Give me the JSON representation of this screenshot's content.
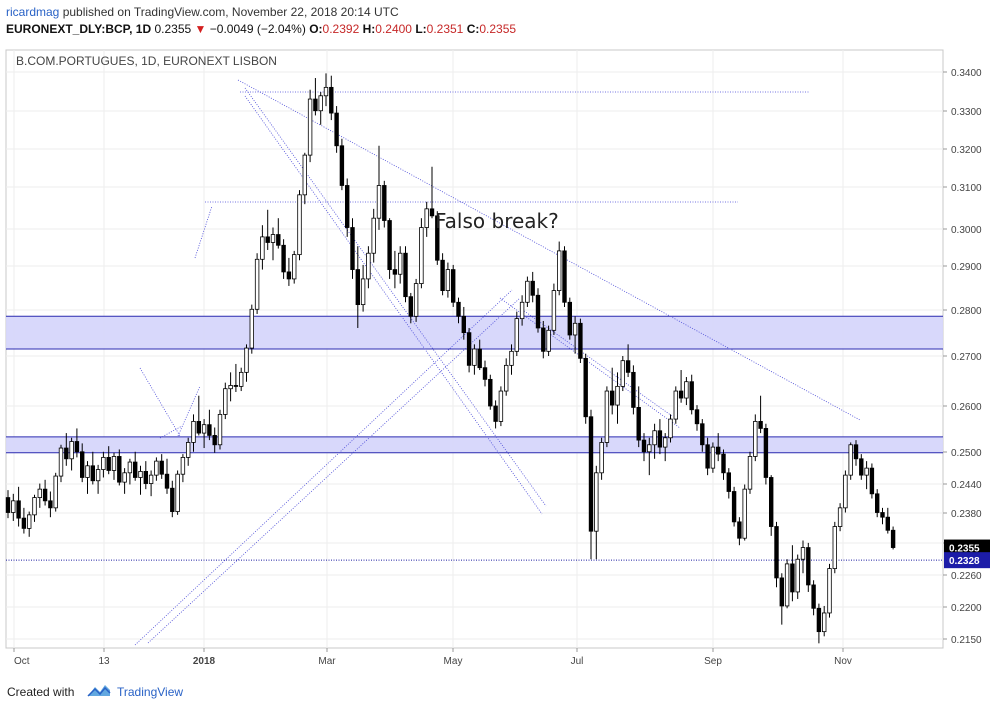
{
  "header": {
    "author": "ricardmag",
    "published_text": "published on TradingView.com, November 22, 2018 20:14 UTC",
    "symbol": "EURONEXT_DLY:BCP, 1D",
    "last_price": "0.2355",
    "change": "−0.0049 (−2.04%)",
    "o_label": "O:",
    "o_value": "0.2392",
    "h_label": "H:",
    "h_value": "0.2400",
    "l_label": "L:",
    "l_value": "0.2351",
    "c_label": "C:",
    "c_value": "0.2355",
    "down_color": "#d32020"
  },
  "footer": {
    "created_with": "Created with",
    "brand": "TradingView"
  },
  "chart_data": {
    "type": "candlestick",
    "title": "B.COM.PORTUGUES, 1D, EURONEXT LISBON",
    "annotation": "Falso break?",
    "xlabel": "",
    "ylabel": "",
    "ylim": [
      0.214,
      0.342
    ],
    "y_ticks": [
      "0.3400",
      "0.3300",
      "0.3200",
      "0.3100",
      "0.3000",
      "0.2900",
      "0.2800",
      "0.2700",
      "0.2600",
      "0.2500",
      "0.2440",
      "0.2380",
      "0.2320",
      "0.2260",
      "0.2200",
      "0.2150"
    ],
    "x_ticks": [
      "Oct",
      "13",
      "2018",
      "Mar",
      "May",
      "Jul",
      "Sep",
      "Nov"
    ],
    "last_price_label": "0.2355",
    "line_price_label": "0.2328",
    "horizontal_line": 0.2328,
    "zones": [
      {
        "low": 0.278,
        "high": 0.285
      },
      {
        "low": 0.2558,
        "high": 0.2592
      }
    ],
    "grid": true,
    "colors": {
      "candle": "#000000",
      "zone_fill": "#d4d4fb",
      "zone_border": "#2b2bb0",
      "trendline": "#4a4ad8",
      "price_line": "#1a1aa0",
      "label_bg": "#000000",
      "label_blue": "#1c1ca8"
    },
    "series": [
      {
        "values": [
          [
            0.2462,
            0.2478,
            0.2418,
            0.243
          ],
          [
            0.243,
            0.247,
            0.2412,
            0.2455
          ],
          [
            0.2455,
            0.2485,
            0.24,
            0.2418
          ],
          [
            0.2418,
            0.244,
            0.2385,
            0.2396
          ],
          [
            0.2396,
            0.2432,
            0.2378,
            0.2425
          ],
          [
            0.2425,
            0.2468,
            0.241,
            0.2462
          ],
          [
            0.2462,
            0.2492,
            0.244,
            0.248
          ],
          [
            0.248,
            0.25,
            0.2445,
            0.2455
          ],
          [
            0.2455,
            0.2475,
            0.242,
            0.244
          ],
          [
            0.244,
            0.2515,
            0.2432,
            0.2508
          ],
          [
            0.2508,
            0.2575,
            0.2495,
            0.2568
          ],
          [
            0.2568,
            0.26,
            0.253,
            0.2545
          ],
          [
            0.2545,
            0.259,
            0.252,
            0.2582
          ],
          [
            0.2582,
            0.261,
            0.2548,
            0.256
          ],
          [
            0.256,
            0.2578,
            0.2495,
            0.2505
          ],
          [
            0.2505,
            0.254,
            0.247,
            0.253
          ],
          [
            0.253,
            0.256,
            0.249,
            0.2498
          ],
          [
            0.2498,
            0.2532,
            0.247,
            0.2522
          ],
          [
            0.2522,
            0.256,
            0.2505,
            0.2548
          ],
          [
            0.2548,
            0.2572,
            0.2512,
            0.252
          ],
          [
            0.252,
            0.2558,
            0.25,
            0.255
          ],
          [
            0.255,
            0.2565,
            0.2488,
            0.2495
          ],
          [
            0.2495,
            0.2525,
            0.247,
            0.2515
          ],
          [
            0.2515,
            0.2545,
            0.249,
            0.2538
          ],
          [
            0.2538,
            0.256,
            0.2498,
            0.2505
          ],
          [
            0.2505,
            0.253,
            0.2468,
            0.2518
          ],
          [
            0.2518,
            0.254,
            0.248,
            0.2492
          ],
          [
            0.2492,
            0.252,
            0.2465,
            0.251
          ],
          [
            0.251,
            0.2548,
            0.2498,
            0.254
          ],
          [
            0.254,
            0.2555,
            0.2502,
            0.2512
          ],
          [
            0.2512,
            0.2545,
            0.247,
            0.2482
          ],
          [
            0.2482,
            0.2498,
            0.242,
            0.2432
          ],
          [
            0.2432,
            0.252,
            0.2425,
            0.2512
          ],
          [
            0.2512,
            0.2555,
            0.2495,
            0.2548
          ],
          [
            0.2548,
            0.259,
            0.253,
            0.258
          ],
          [
            0.258,
            0.264,
            0.256,
            0.2625
          ],
          [
            0.2625,
            0.268,
            0.2595,
            0.26
          ],
          [
            0.26,
            0.263,
            0.2568,
            0.2618
          ],
          [
            0.2618,
            0.265,
            0.2585,
            0.2595
          ],
          [
            0.2595,
            0.2612,
            0.2558,
            0.2575
          ],
          [
            0.2575,
            0.265,
            0.2565,
            0.264
          ],
          [
            0.264,
            0.2708,
            0.263,
            0.2695
          ],
          [
            0.2695,
            0.273,
            0.2668,
            0.2702
          ],
          [
            0.2702,
            0.2748,
            0.2688,
            0.27
          ],
          [
            0.27,
            0.274,
            0.269,
            0.273
          ],
          [
            0.273,
            0.279,
            0.271,
            0.2782
          ],
          [
            0.2782,
            0.2875,
            0.277,
            0.2865
          ],
          [
            0.2865,
            0.2985,
            0.2855,
            0.2972
          ],
          [
            0.2972,
            0.3045,
            0.295,
            0.302
          ],
          [
            0.302,
            0.3078,
            0.2992,
            0.3008
          ],
          [
            0.3008,
            0.304,
            0.297,
            0.3025
          ],
          [
            0.3025,
            0.306,
            0.2995,
            0.3002
          ],
          [
            0.3002,
            0.3015,
            0.293,
            0.2945
          ],
          [
            0.2945,
            0.2975,
            0.2915,
            0.293
          ],
          [
            0.293,
            0.299,
            0.292,
            0.2982
          ],
          [
            0.2982,
            0.312,
            0.297,
            0.311
          ],
          [
            0.311,
            0.32,
            0.309,
            0.3195
          ],
          [
            0.3195,
            0.3335,
            0.318,
            0.3315
          ],
          [
            0.3315,
            0.336,
            0.328,
            0.329
          ],
          [
            0.329,
            0.333,
            0.326,
            0.3322
          ],
          [
            0.3322,
            0.337,
            0.33,
            0.334
          ],
          [
            0.334,
            0.3365,
            0.327,
            0.3285
          ],
          [
            0.3285,
            0.33,
            0.32,
            0.3215
          ],
          [
            0.3215,
            0.323,
            0.312,
            0.313
          ],
          [
            0.313,
            0.3145,
            0.302,
            0.304
          ],
          [
            0.304,
            0.306,
            0.293,
            0.295
          ],
          [
            0.295,
            0.3,
            0.2825,
            0.2875
          ],
          [
            0.2875,
            0.296,
            0.286,
            0.293
          ],
          [
            0.293,
            0.3,
            0.291,
            0.2985
          ],
          [
            0.2985,
            0.308,
            0.2965,
            0.306
          ],
          [
            0.306,
            0.3215,
            0.3035,
            0.313
          ],
          [
            0.313,
            0.314,
            0.304,
            0.3055
          ],
          [
            0.3055,
            0.306,
            0.293,
            0.295
          ],
          [
            0.295,
            0.299,
            0.291,
            0.294
          ],
          [
            0.294,
            0.3,
            0.292,
            0.2985
          ],
          [
            0.2985,
            0.3,
            0.288,
            0.2892
          ],
          [
            0.2892,
            0.29,
            0.2835,
            0.285
          ],
          [
            0.285,
            0.293,
            0.2838,
            0.292
          ],
          [
            0.292,
            0.306,
            0.291,
            0.304
          ],
          [
            0.304,
            0.3095,
            0.302,
            0.308
          ],
          [
            0.308,
            0.317,
            0.306,
            0.3065
          ],
          [
            0.3065,
            0.3075,
            0.296,
            0.297
          ],
          [
            0.297,
            0.2985,
            0.2895,
            0.2905
          ],
          [
            0.2905,
            0.2965,
            0.289,
            0.295
          ],
          [
            0.295,
            0.296,
            0.287,
            0.288
          ],
          [
            0.288,
            0.289,
            0.2835,
            0.285
          ],
          [
            0.285,
            0.287,
            0.28,
            0.2815
          ],
          [
            0.2815,
            0.2825,
            0.273,
            0.2745
          ],
          [
            0.2745,
            0.279,
            0.2725,
            0.278
          ],
          [
            0.278,
            0.28,
            0.2735,
            0.274
          ],
          [
            0.274,
            0.2755,
            0.27,
            0.2715
          ],
          [
            0.2715,
            0.2725,
            0.265,
            0.2658
          ],
          [
            0.2658,
            0.267,
            0.261,
            0.2625
          ],
          [
            0.2625,
            0.27,
            0.2615,
            0.269
          ],
          [
            0.269,
            0.276,
            0.268,
            0.2745
          ],
          [
            0.2745,
            0.279,
            0.2725,
            0.2775
          ],
          [
            0.2775,
            0.286,
            0.2765,
            0.2845
          ],
          [
            0.2845,
            0.2895,
            0.283,
            0.288
          ],
          [
            0.288,
            0.2935,
            0.287,
            0.2925
          ],
          [
            0.2925,
            0.2945,
            0.288,
            0.2895
          ],
          [
            0.2895,
            0.291,
            0.2815,
            0.2825
          ],
          [
            0.2825,
            0.284,
            0.276,
            0.2775
          ],
          [
            0.2775,
            0.283,
            0.2765,
            0.282
          ],
          [
            0.282,
            0.292,
            0.281,
            0.2905
          ],
          [
            0.2905,
            0.301,
            0.2895,
            0.299
          ],
          [
            0.299,
            0.3,
            0.287,
            0.288
          ],
          [
            0.288,
            0.289,
            0.28,
            0.281
          ],
          [
            0.281,
            0.285,
            0.277,
            0.2835
          ],
          [
            0.2835,
            0.2845,
            0.275,
            0.276
          ],
          [
            0.276,
            0.277,
            0.262,
            0.2635
          ],
          [
            0.2635,
            0.265,
            0.233,
            0.239
          ],
          [
            0.239,
            0.253,
            0.233,
            0.2515
          ],
          [
            0.2515,
            0.259,
            0.25,
            0.258
          ],
          [
            0.258,
            0.27,
            0.257,
            0.269
          ],
          [
            0.269,
            0.274,
            0.264,
            0.266
          ],
          [
            0.266,
            0.273,
            0.262,
            0.27
          ],
          [
            0.27,
            0.2765,
            0.269,
            0.2755
          ],
          [
            0.2755,
            0.279,
            0.272,
            0.273
          ],
          [
            0.273,
            0.2745,
            0.264,
            0.2655
          ],
          [
            0.2655,
            0.27,
            0.257,
            0.2585
          ],
          [
            0.2585,
            0.26,
            0.254,
            0.256
          ],
          [
            0.256,
            0.259,
            0.251,
            0.2575
          ],
          [
            0.2575,
            0.262,
            0.2545,
            0.2605
          ],
          [
            0.2605,
            0.263,
            0.2555,
            0.257
          ],
          [
            0.257,
            0.26,
            0.254,
            0.259
          ],
          [
            0.259,
            0.264,
            0.258,
            0.263
          ],
          [
            0.263,
            0.27,
            0.262,
            0.269
          ],
          [
            0.269,
            0.2735,
            0.2665,
            0.2675
          ],
          [
            0.2675,
            0.272,
            0.266,
            0.271
          ],
          [
            0.271,
            0.2725,
            0.264,
            0.265
          ],
          [
            0.265,
            0.266,
            0.2605,
            0.262
          ],
          [
            0.262,
            0.263,
            0.256,
            0.2575
          ],
          [
            0.2575,
            0.259,
            0.251,
            0.2525
          ],
          [
            0.2525,
            0.258,
            0.2515,
            0.257
          ],
          [
            0.257,
            0.26,
            0.254,
            0.2555
          ],
          [
            0.2555,
            0.2565,
            0.25,
            0.2515
          ],
          [
            0.2515,
            0.2525,
            0.246,
            0.2475
          ],
          [
            0.2475,
            0.2485,
            0.24,
            0.241
          ],
          [
            0.241,
            0.242,
            0.236,
            0.2375
          ],
          [
            0.2375,
            0.249,
            0.237,
            0.248
          ],
          [
            0.248,
            0.256,
            0.247,
            0.255
          ],
          [
            0.255,
            0.264,
            0.254,
            0.2625
          ],
          [
            0.2625,
            0.268,
            0.26,
            0.261
          ],
          [
            0.261,
            0.262,
            0.249,
            0.2505
          ],
          [
            0.2505,
            0.251,
            0.238,
            0.24
          ],
          [
            0.24,
            0.241,
            0.227,
            0.229
          ],
          [
            0.229,
            0.23,
            0.219,
            0.223
          ],
          [
            0.223,
            0.233,
            0.2225,
            0.232
          ],
          [
            0.232,
            0.236,
            0.224,
            0.226
          ],
          [
            0.226,
            0.234,
            0.2245,
            0.233
          ],
          [
            0.233,
            0.237,
            0.23,
            0.2355
          ],
          [
            0.2355,
            0.2365,
            0.226,
            0.2275
          ],
          [
            0.2275,
            0.2285,
            0.221,
            0.2225
          ],
          [
            0.2225,
            0.2235,
            0.215,
            0.2175
          ],
          [
            0.2175,
            0.223,
            0.2165,
            0.2215
          ],
          [
            0.2215,
            0.232,
            0.2205,
            0.231
          ],
          [
            0.231,
            0.241,
            0.23,
            0.24
          ],
          [
            0.24,
            0.245,
            0.239,
            0.244
          ],
          [
            0.244,
            0.252,
            0.243,
            0.251
          ],
          [
            0.251,
            0.258,
            0.25,
            0.2575
          ],
          [
            0.2575,
            0.2585,
            0.253,
            0.2545
          ],
          [
            0.2545,
            0.2555,
            0.25,
            0.251
          ],
          [
            0.251,
            0.254,
            0.248,
            0.2525
          ],
          [
            0.2525,
            0.2535,
            0.246,
            0.247
          ],
          [
            0.247,
            0.248,
            0.242,
            0.243
          ],
          [
            0.243,
            0.244,
            0.2405,
            0.242
          ],
          [
            0.242,
            0.244,
            0.2385,
            0.2392
          ],
          [
            0.2392,
            0.24,
            0.2351,
            0.2355
          ]
        ]
      }
    ]
  }
}
